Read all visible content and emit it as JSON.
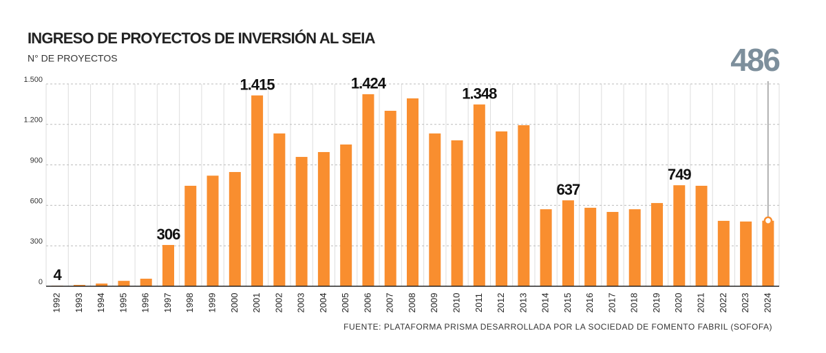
{
  "chart_data": {
    "type": "bar",
    "title": "INGRESO DE PROYECTOS DE INVERSIÓN AL SEIA",
    "subtitle": "N° DE PROYECTOS",
    "source": "FUENTE: PLATAFORMA PRISMA DESARROLLADA POR LA SOCIEDAD DE FOMENTO FABRIL (SOFOFA)",
    "categories": [
      "1992",
      "1993",
      "1994",
      "1995",
      "1996",
      "1997",
      "1998",
      "1999",
      "2000",
      "2001",
      "2002",
      "2003",
      "2004",
      "2005",
      "2006",
      "2007",
      "2008",
      "2009",
      "2010",
      "2011",
      "2012",
      "2013",
      "2014",
      "2015",
      "2016",
      "2017",
      "2018",
      "2019",
      "2020",
      "2021",
      "2022",
      "2023",
      "2024"
    ],
    "values": [
      4,
      10,
      20,
      40,
      56,
      306,
      745,
      820,
      847,
      1415,
      1133,
      959,
      995,
      1051,
      1424,
      1301,
      1393,
      1133,
      1082,
      1348,
      1148,
      1194,
      571,
      637,
      582,
      551,
      571,
      617,
      749,
      745,
      485,
      480,
      486
    ],
    "value_labels": [
      "4",
      null,
      null,
      null,
      null,
      "306",
      null,
      null,
      null,
      "1.415",
      null,
      null,
      null,
      null,
      "1.424",
      null,
      null,
      null,
      null,
      "1.348",
      null,
      null,
      null,
      "637",
      null,
      null,
      null,
      null,
      "749",
      null,
      null,
      null,
      "486"
    ],
    "color": "#f98e2f",
    "ylim": [
      0,
      1500
    ],
    "yticks": [
      0,
      300,
      600,
      900,
      {
        "value": 1200,
        "label": "1.200"
      },
      {
        "value": 1500,
        "label": "1.500"
      }
    ],
    "grid": true
  }
}
